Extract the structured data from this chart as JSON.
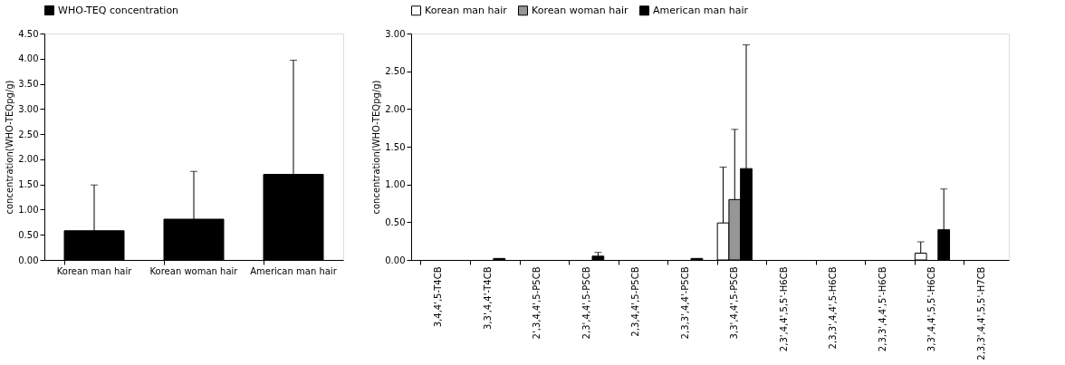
{
  "chart_data": [
    {
      "type": "bar",
      "categories": [
        "Korean man hair",
        "Korean woman hair",
        "American man hair"
      ],
      "ylabel": "concentration(WHO-TEQpg/g)",
      "ylim": [
        0,
        4.5
      ],
      "yticks": [
        {
          "value": 0,
          "label": "0.00"
        },
        {
          "value": 0.5,
          "label": "0.50"
        },
        {
          "value": 1,
          "label": "1.00"
        },
        {
          "value": 1.5,
          "label": "1.50"
        },
        {
          "value": 2,
          "label": "2.00"
        },
        {
          "value": 2.5,
          "label": "2.50"
        },
        {
          "value": 3,
          "label": "3.00"
        },
        {
          "value": 3.5,
          "label": "3.50"
        },
        {
          "value": 4,
          "label": "4.00"
        },
        {
          "value": 4.5,
          "label": "4.50"
        }
      ],
      "grid": false,
      "legend": "top",
      "series": [
        {
          "name": "WHO-TEQ concentration",
          "color": "#000000",
          "values": [
            0.58,
            0.81,
            1.7
          ],
          "errors": [
            [
              0.58,
              1.49
            ],
            [
              0.81,
              1.76
            ],
            [
              1.7,
              3.97
            ]
          ]
        }
      ]
    },
    {
      "type": "bar",
      "categories": [
        "3,4,4',5-T4CB",
        "3,3',4,4'-T4CB",
        "2',3,4,4',5-P5CB",
        "2,3',4,4',5-P5CB",
        "2,3,4,4',5-P5CB",
        "2,3,3',4,4'-P5CB",
        "3,3',4,4',5-P5CB",
        "2,3',4,4',5,5'-H6CB",
        "2,3,3',4,4',5-H6CB",
        "2,3,3',4,4',5'-H6CB",
        "3,3',4,4',5,5'-H6CB",
        "2,3,3',4,4',5,5'-H7CB"
      ],
      "ylabel": "concentration(WHO-TEQpg/g)",
      "ylim": [
        0,
        3
      ],
      "yticks": [
        {
          "value": 0,
          "label": "0.00"
        },
        {
          "value": 0.5,
          "label": "0.50"
        },
        {
          "value": 1,
          "label": "1.00"
        },
        {
          "value": 1.5,
          "label": "1.50"
        },
        {
          "value": 2,
          "label": "2.00"
        },
        {
          "value": 2.5,
          "label": "2.50"
        },
        {
          "value": 3,
          "label": "3.00"
        }
      ],
      "grid": false,
      "legend": "top",
      "series": [
        {
          "name": "Korean man hair",
          "color": "#ffffff",
          "values": [
            null,
            null,
            null,
            null,
            null,
            null,
            0.49,
            null,
            null,
            null,
            0.09,
            null
          ],
          "errors": [
            null,
            null,
            null,
            null,
            null,
            null,
            [
              0.49,
              1.23
            ],
            null,
            null,
            null,
            [
              0.09,
              0.24
            ],
            null
          ]
        },
        {
          "name": "Korean woman hair",
          "color": "#969696",
          "values": [
            null,
            null,
            null,
            null,
            null,
            null,
            0.8,
            null,
            null,
            null,
            null,
            null
          ],
          "errors": [
            null,
            null,
            null,
            null,
            null,
            null,
            [
              0.8,
              1.73
            ],
            null,
            null,
            null,
            null,
            null
          ]
        },
        {
          "name": "American man hair",
          "color": "#000000",
          "values": [
            null,
            0.02,
            null,
            0.05,
            null,
            0.02,
            1.21,
            null,
            null,
            null,
            0.4,
            null
          ],
          "errors": [
            null,
            null,
            null,
            [
              0.05,
              0.1
            ],
            null,
            null,
            [
              1.21,
              2.85
            ],
            null,
            null,
            null,
            [
              0.4,
              0.94
            ],
            null
          ]
        }
      ]
    }
  ]
}
